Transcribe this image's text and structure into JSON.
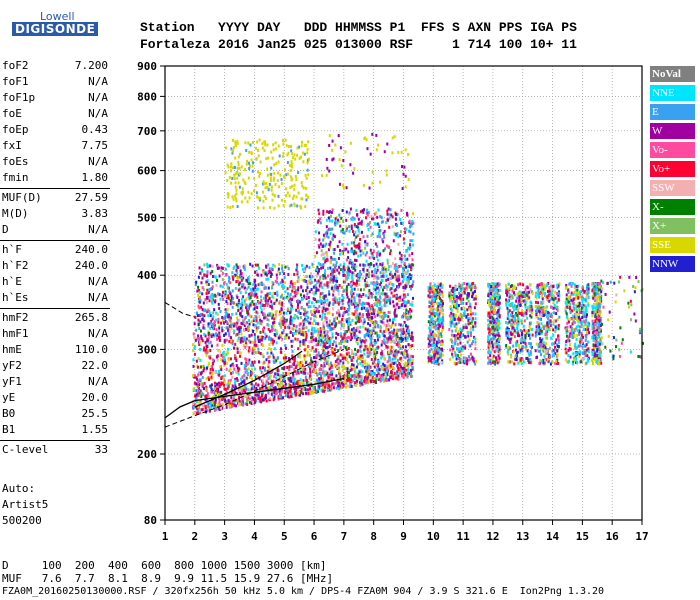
{
  "logo": {
    "top": "Lowell",
    "bottom": "DIGISONDE"
  },
  "header": {
    "row1": "Station   YYYY DAY   DDD HHMMSS P1  FFS S AXN PPS IGA PS",
    "row2": "Fortaleza 2016 Jan25 025 013000 RSF     1 714 100 10+ 11"
  },
  "params": [
    {
      "name": "foF2",
      "value": "7.200"
    },
    {
      "name": "foF1",
      "value": "N/A"
    },
    {
      "name": "foF1p",
      "value": "N/A"
    },
    {
      "name": "foE",
      "value": "N/A"
    },
    {
      "name": "foEp",
      "value": "0.43"
    },
    {
      "name": "fxI",
      "value": "7.75"
    },
    {
      "name": "foEs",
      "value": "N/A"
    },
    {
      "name": "fmin",
      "value": "1.80"
    },
    {
      "name": "MUF(D)",
      "value": "27.59"
    },
    {
      "name": "M(D)",
      "value": "3.83"
    },
    {
      "name": "D",
      "value": "N/A"
    },
    {
      "name": "h`F",
      "value": "240.0"
    },
    {
      "name": "h`F2",
      "value": "240.0"
    },
    {
      "name": "h`E",
      "value": "N/A"
    },
    {
      "name": "h`Es",
      "value": "N/A"
    },
    {
      "name": "hmF2",
      "value": "265.8"
    },
    {
      "name": "hmF1",
      "value": "N/A"
    },
    {
      "name": "hmE",
      "value": "110.0"
    },
    {
      "name": "yF2",
      "value": "22.0"
    },
    {
      "name": "yF1",
      "value": "N/A"
    },
    {
      "name": "yE",
      "value": "20.0"
    },
    {
      "name": "B0",
      "value": "25.5"
    },
    {
      "name": "B1",
      "value": "1.55"
    },
    {
      "name": "C-level",
      "value": "33"
    }
  ],
  "auto": {
    "line1": "Auto:",
    "line2": "Artist5",
    "line3": "500200"
  },
  "legend": [
    {
      "label": "NoVal",
      "color": "#808080",
      "bold": true
    },
    {
      "label": "NNE",
      "color": "#00e5ff"
    },
    {
      "label": "E",
      "color": "#3aa0f0"
    },
    {
      "label": "W",
      "color": "#a000a0"
    },
    {
      "label": "Vo-",
      "color": "#ff4aa0"
    },
    {
      "label": "Vo+",
      "color": "#ff0033"
    },
    {
      "label": "SSW",
      "color": "#f4b0b0"
    },
    {
      "label": "X-",
      "color": "#008000"
    },
    {
      "label": "X+",
      "color": "#80c060"
    },
    {
      "label": "SSE",
      "color": "#d8d800"
    },
    {
      "label": "NNW",
      "color": "#2020d0"
    }
  ],
  "chart_data": {
    "type": "scatter",
    "xlim": [
      1,
      17
    ],
    "ylim": [
      80,
      900
    ],
    "y_scale": "log",
    "x_ticks": [
      "1",
      "2",
      "3",
      "4",
      "5",
      "6",
      "7",
      "8",
      "9",
      "10",
      "11",
      "12",
      "13",
      "14",
      "15",
      "16",
      "17"
    ],
    "y_ticks": [
      "80",
      "200",
      "300",
      "400",
      "500",
      "600",
      "700",
      "800",
      "900"
    ],
    "grid": true
  },
  "footer": {
    "d_row": "D     100  200  400  600  800 1000 1500 3000 [km]",
    "muf_row": "MUF   7.6  7.7  8.1  8.9  9.9 11.5 15.9 27.6 [MHz]",
    "file_row": "FZA0M_20160250130000.RSF / 320fx256h 50 kHz 5.0 km / DPS-4 FZA0M 904 / 3.9 S 321.6 E  Ion2Png 1.3.20"
  }
}
